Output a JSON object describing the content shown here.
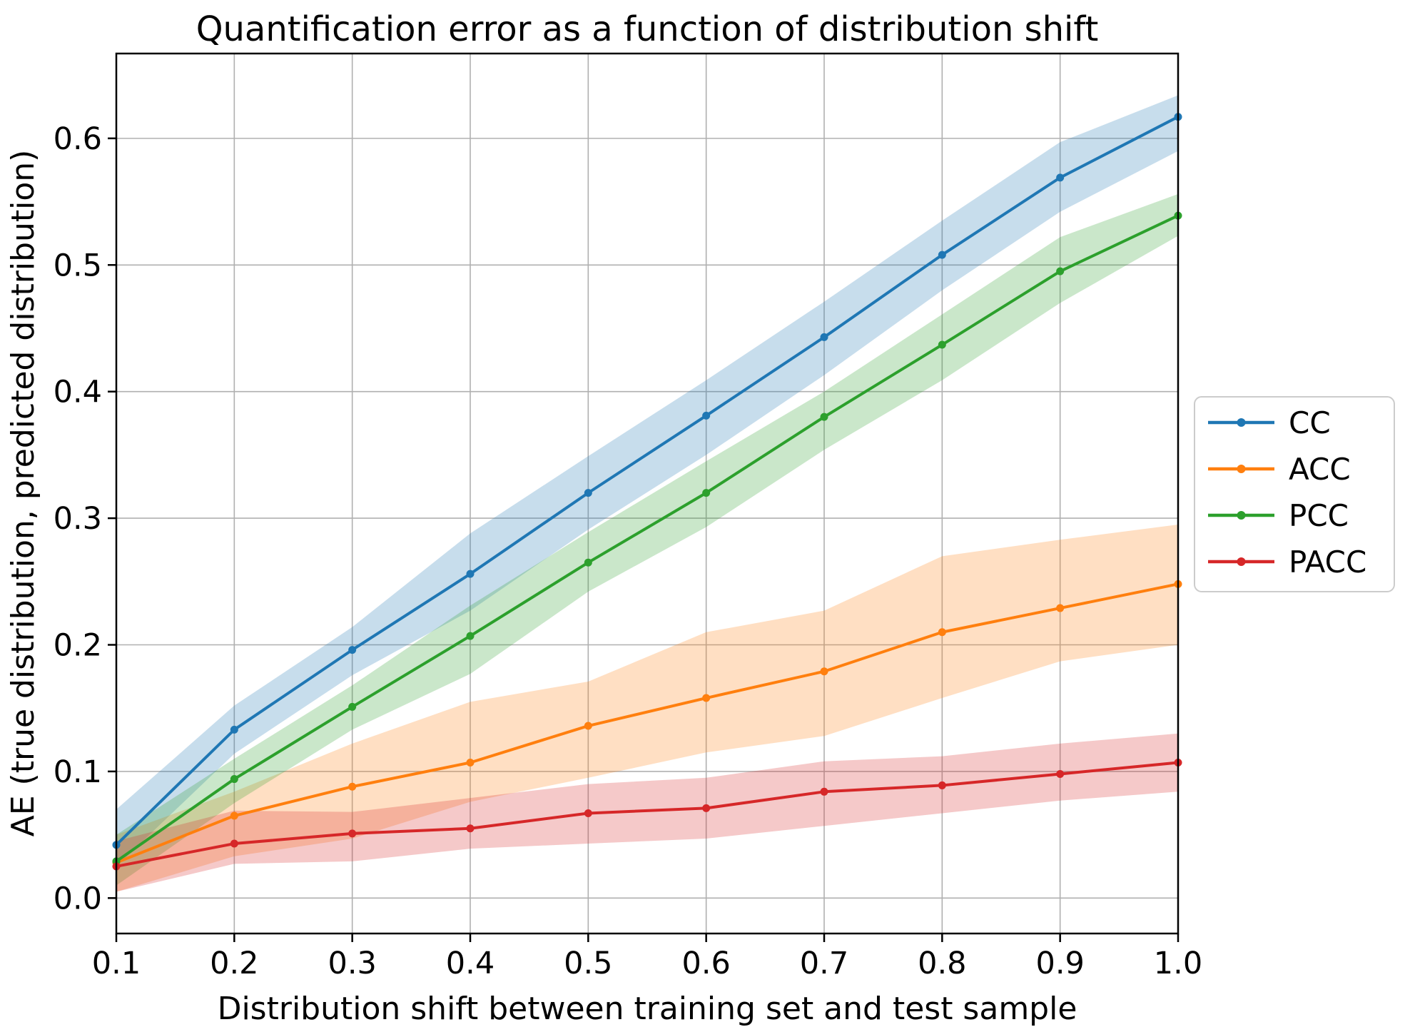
{
  "figure": {
    "background": "#ffffff",
    "grid_color": "#b0b0b0",
    "spine_color": "#000000",
    "text_color": "#000000",
    "legend_border_color": "#cccccc",
    "band_opacity": 0.25
  },
  "chart_data": {
    "type": "line",
    "title": "Quantification error as a function of distribution shift",
    "xlabel": "Distribution shift between training set and test sample",
    "ylabel": "AE (true distribution, predicted distribution)",
    "grid": true,
    "legend_position": "outside-right",
    "xlim": [
      0.1,
      1.0
    ],
    "ylim": [
      -0.028,
      0.667
    ],
    "x": [
      0.1,
      0.2,
      0.3,
      0.4,
      0.5,
      0.6,
      0.7,
      0.8,
      0.9,
      1.0
    ],
    "xtick_values": [
      0.1,
      0.2,
      0.3,
      0.4,
      0.5,
      0.6,
      0.7,
      0.8,
      0.9,
      1.0
    ],
    "xtick_labels": [
      "0.1",
      "0.2",
      "0.3",
      "0.4",
      "0.5",
      "0.6",
      "0.7",
      "0.8",
      "0.9",
      "1.0"
    ],
    "ytick_values": [
      0.0,
      0.1,
      0.2,
      0.3,
      0.4,
      0.5,
      0.6
    ],
    "ytick_labels": [
      "0.0",
      "0.1",
      "0.2",
      "0.3",
      "0.4",
      "0.5",
      "0.6"
    ],
    "series": [
      {
        "name": "CC",
        "color": "#1f77b4",
        "values": [
          0.042,
          0.133,
          0.196,
          0.256,
          0.32,
          0.381,
          0.443,
          0.508,
          0.569,
          0.617
        ],
        "band_lower": [
          0.025,
          0.114,
          0.176,
          0.227,
          0.291,
          0.35,
          0.413,
          0.48,
          0.542,
          0.59
        ],
        "band_upper": [
          0.07,
          0.152,
          0.214,
          0.288,
          0.349,
          0.409,
          0.471,
          0.535,
          0.597,
          0.634
        ]
      },
      {
        "name": "ACC",
        "color": "#ff7f0e",
        "values": [
          0.028,
          0.065,
          0.088,
          0.107,
          0.136,
          0.158,
          0.179,
          0.21,
          0.229,
          0.248
        ],
        "band_lower": [
          0.005,
          0.033,
          0.047,
          0.076,
          0.095,
          0.115,
          0.128,
          0.158,
          0.187,
          0.2
        ],
        "band_upper": [
          0.05,
          0.084,
          0.122,
          0.155,
          0.171,
          0.21,
          0.227,
          0.27,
          0.283,
          0.295
        ]
      },
      {
        "name": "PCC",
        "color": "#2ca02c",
        "values": [
          0.029,
          0.094,
          0.151,
          0.207,
          0.265,
          0.32,
          0.38,
          0.437,
          0.495,
          0.539
        ],
        "band_lower": [
          0.01,
          0.075,
          0.133,
          0.177,
          0.242,
          0.293,
          0.354,
          0.409,
          0.47,
          0.523
        ],
        "band_upper": [
          0.05,
          0.11,
          0.168,
          0.231,
          0.289,
          0.345,
          0.4,
          0.461,
          0.522,
          0.556
        ]
      },
      {
        "name": "PACC",
        "color": "#d62728",
        "values": [
          0.025,
          0.043,
          0.051,
          0.055,
          0.067,
          0.071,
          0.084,
          0.089,
          0.098,
          0.107
        ],
        "band_lower": [
          0.005,
          0.027,
          0.029,
          0.039,
          0.043,
          0.047,
          0.057,
          0.067,
          0.077,
          0.084
        ],
        "band_upper": [
          0.045,
          0.069,
          0.068,
          0.079,
          0.09,
          0.095,
          0.108,
          0.112,
          0.122,
          0.13
        ]
      }
    ]
  }
}
